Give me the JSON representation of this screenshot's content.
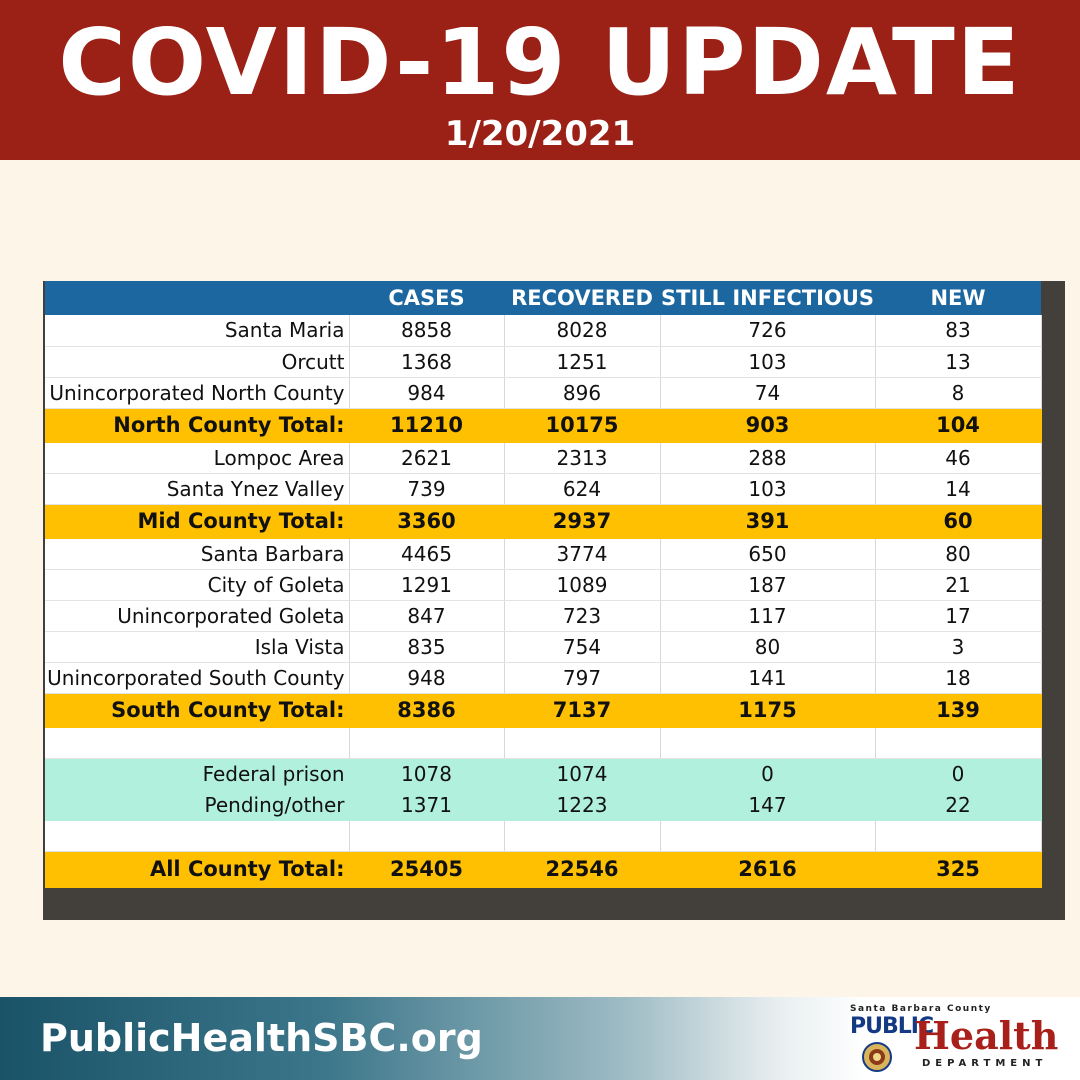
{
  "header": {
    "title": "COVID-19 UPDATE",
    "date": "1/20/2021"
  },
  "table": {
    "columns": [
      "",
      "CASES",
      "RECOVERED",
      "STILL INFECTIOUS",
      "NEW"
    ],
    "rows": [
      {
        "type": "row",
        "cells": [
          "Santa Maria",
          "8858",
          "8028",
          "726",
          "83"
        ]
      },
      {
        "type": "row",
        "cells": [
          "Orcutt",
          "1368",
          "1251",
          "103",
          "13"
        ]
      },
      {
        "type": "row",
        "cells": [
          "Unincorporated North County",
          "984",
          "896",
          "74",
          "8"
        ]
      },
      {
        "type": "total",
        "cells": [
          "North County Total:",
          "11210",
          "10175",
          "903",
          "104"
        ]
      },
      {
        "type": "row",
        "cells": [
          "Lompoc Area",
          "2621",
          "2313",
          "288",
          "46"
        ]
      },
      {
        "type": "row",
        "cells": [
          "Santa Ynez Valley",
          "739",
          "624",
          "103",
          "14"
        ]
      },
      {
        "type": "total",
        "cells": [
          "Mid County Total:",
          "3360",
          "2937",
          "391",
          "60"
        ]
      },
      {
        "type": "row",
        "cells": [
          "Santa Barbara",
          "4465",
          "3774",
          "650",
          "80"
        ]
      },
      {
        "type": "row",
        "cells": [
          "City of Goleta",
          "1291",
          "1089",
          "187",
          "21"
        ]
      },
      {
        "type": "row",
        "cells": [
          "Unincorporated Goleta",
          "847",
          "723",
          "117",
          "17"
        ]
      },
      {
        "type": "row",
        "cells": [
          "Isla Vista",
          "835",
          "754",
          "80",
          "3"
        ]
      },
      {
        "type": "row",
        "cells": [
          "Unincorporated South County",
          "948",
          "797",
          "141",
          "18"
        ]
      },
      {
        "type": "total",
        "cells": [
          "South County Total:",
          "8386",
          "7137",
          "1175",
          "139"
        ]
      },
      {
        "type": "blank",
        "cells": [
          "",
          "",
          "",
          "",
          ""
        ]
      },
      {
        "type": "teal",
        "cells": [
          "Federal prison",
          "1078",
          "1074",
          "0",
          "0"
        ]
      },
      {
        "type": "teal",
        "cells": [
          "Pending/other",
          "1371",
          "1223",
          "147",
          "22"
        ]
      },
      {
        "type": "blank",
        "cells": [
          "",
          "",
          "",
          "",
          ""
        ]
      },
      {
        "type": "grand",
        "cells": [
          "All County Total:",
          "25405",
          "22546",
          "2616",
          "325"
        ]
      }
    ]
  },
  "footer": {
    "url": "PublicHealthSBC.org",
    "logo": {
      "county": "Santa Barbara County",
      "public": "PUBLIC",
      "health": "Health",
      "department": "DEPARTMENT",
      "seal_icon": "county-seal-icon"
    }
  },
  "colors": {
    "banner": "#9b2116",
    "header_row": "#1c67a0",
    "total_row": "#fec000",
    "teal_row": "#b0f0dc",
    "background": "#fdf5e8"
  }
}
